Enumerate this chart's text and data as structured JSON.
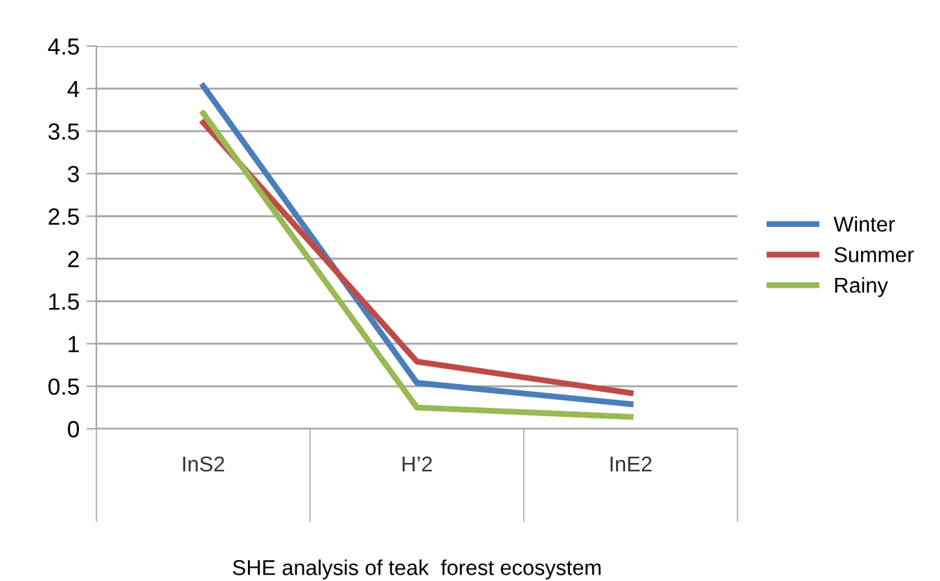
{
  "chart_data": {
    "type": "line",
    "xlabel": "SHE analysis of teak  forest ecosystem",
    "categories": [
      "InS2",
      "H’2",
      "InE2"
    ],
    "series": [
      {
        "name": "Winter",
        "color": "#4a7ebb",
        "values": [
          4.03,
          0.54,
          0.29
        ]
      },
      {
        "name": "Summer",
        "color": "#be4b48",
        "values": [
          3.6,
          0.79,
          0.42
        ]
      },
      {
        "name": "Rainy",
        "color": "#98b954",
        "values": [
          3.71,
          0.25,
          0.14
        ]
      }
    ],
    "ylim": [
      0,
      4.5
    ],
    "yticks": [
      0,
      0.5,
      1,
      1.5,
      2,
      2.5,
      3,
      3.5,
      4,
      4.5
    ],
    "grid": "y",
    "legend": "right",
    "marker": "none",
    "line_style": "solid"
  }
}
